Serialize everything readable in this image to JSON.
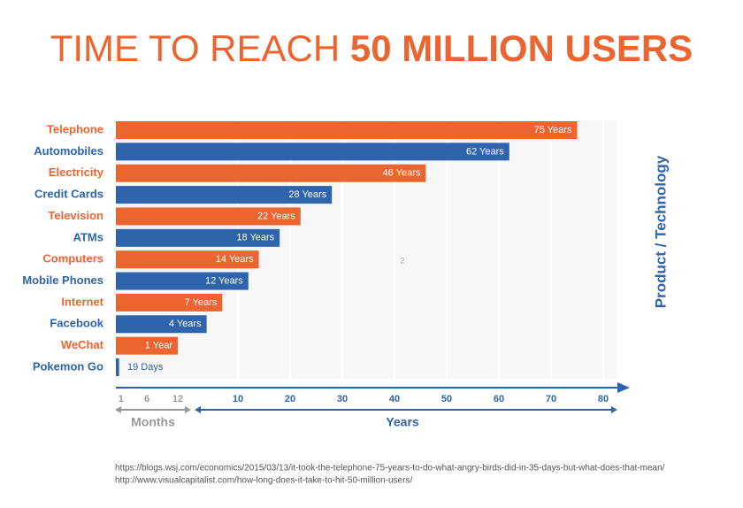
{
  "chart_data": {
    "type": "bar",
    "orientation": "horizontal",
    "title_part1": "TIME TO REACH",
    "title_part2": "50 MILLION USERS",
    "y_axis_label": "Product / Technology",
    "categories": [
      "Telephone",
      "Automobiles",
      "Electricity",
      "Credit Cards",
      "Television",
      "ATMs",
      "Computers",
      "Mobile Phones",
      "Internet",
      "Facebook",
      "WeChat",
      "Pokemon Go"
    ],
    "values": [
      75,
      62,
      46,
      28,
      22,
      18,
      14,
      12,
      7,
      4,
      1,
      0.052
    ],
    "value_labels": [
      "75 Years",
      "62 Years",
      "46 Years",
      "28 Years",
      "22 Years",
      "18 Years",
      "14 Years",
      "12 Years",
      "7 Years",
      "4 Years",
      "1 Year",
      "19 Days"
    ],
    "colors": [
      "#ec6530",
      "#2f64ad",
      "#ec6530",
      "#2f64ad",
      "#ec6530",
      "#2f64ad",
      "#ec6530",
      "#2f64ad",
      "#ec6530",
      "#2f64ad",
      "#ec6530",
      "#2f64ad"
    ],
    "months_label": "Months",
    "months_lim": [
      0,
      12
    ],
    "months_ticks": [
      1,
      6,
      12
    ],
    "years_label": "Years",
    "xlim": [
      0,
      80
    ],
    "xticks": [
      10,
      20,
      30,
      40,
      50,
      60,
      70,
      80
    ],
    "grid": true,
    "annotation": "2",
    "sources": [
      "https://blogs.wsj.com/economics/2015/03/13/it-took-the-telephone-75-years-to-do-what-angry-birds-did-in-35-days-but-what-does-that-mean/",
      "http://www.visualcapitalist.com/how-long-does-it-take-to-hit-50-million-users/"
    ]
  }
}
